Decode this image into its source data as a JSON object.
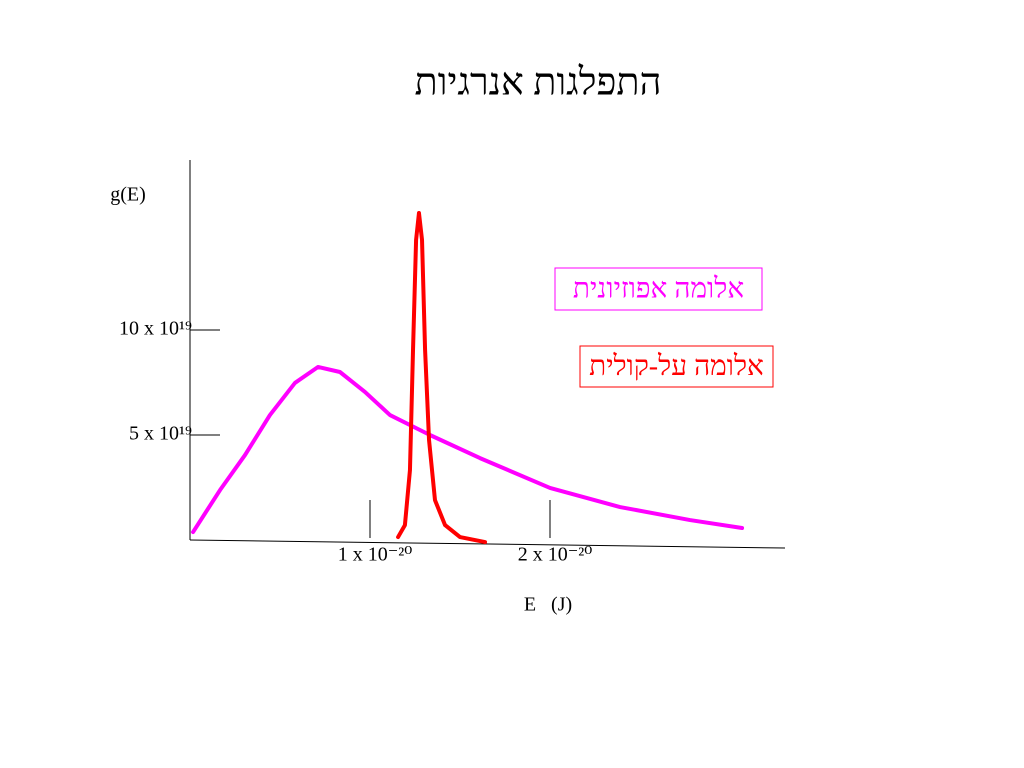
{
  "chart_data": {
    "type": "line",
    "title": "התפלגות אנרגיות",
    "y_label": "g(E)",
    "x_label": "E   (J)",
    "xlim": [
      0,
      3.3
    ],
    "ylim": [
      0,
      18
    ],
    "xticks": [
      {
        "value": 1,
        "label": "1 x 10⁻²⁰"
      },
      {
        "value": 2,
        "label": "2 x 10⁻²⁰"
      }
    ],
    "yticks": [
      {
        "value": 5,
        "label": "5 x 10¹⁹"
      },
      {
        "value": 10,
        "label": "10 x 10¹⁹"
      }
    ],
    "series": [
      {
        "name": "אלומה אפוזיונית",
        "color": "#ff00ff",
        "x": [
          0.017,
          0.167,
          0.306,
          0.444,
          0.583,
          0.711,
          0.833,
          0.972,
          1.111,
          1.333,
          1.611,
          2.0,
          2.389,
          2.778,
          3.067
        ],
        "values": [
          0.38,
          2.38,
          4.05,
          5.95,
          7.48,
          8.24,
          8.0,
          7.05,
          5.95,
          5.0,
          3.9,
          2.48,
          1.57,
          0.95,
          0.57
        ]
      },
      {
        "name": "אלומה על-קולית",
        "color": "#ff0000",
        "x": [
          1.156,
          1.194,
          1.222,
          1.239,
          1.256,
          1.272,
          1.289,
          1.306,
          1.328,
          1.361,
          1.417,
          1.5,
          1.639
        ],
        "values": [
          0.14,
          0.71,
          3.33,
          9.05,
          14.29,
          15.57,
          14.29,
          9.05,
          4.76,
          1.9,
          0.71,
          0.14,
          -0.1
        ]
      }
    ]
  }
}
